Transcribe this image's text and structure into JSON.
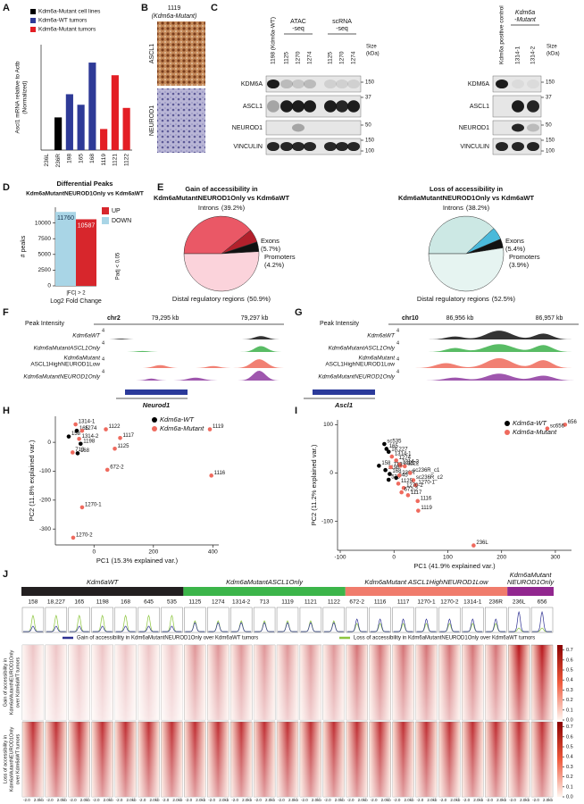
{
  "panel_labels": [
    "A",
    "B",
    "C",
    "D",
    "E",
    "F",
    "G",
    "H",
    "I",
    "J"
  ],
  "chart_data": [
    {
      "type": "bar",
      "ylabel": [
        "Ascl1 mRNA relative to Actb",
        "(Normalized)"
      ],
      "categories": [
        "236L",
        "236R",
        "198",
        "165",
        "168",
        "1119",
        "1121",
        "1122"
      ],
      "series": [
        {
          "name": "Kdm6a-Mutant cell lines",
          "color": "#000000",
          "values": [
            0,
            155,
            null,
            null,
            null,
            null,
            null,
            null
          ]
        },
        {
          "name": "Kdm6a-WT tumors",
          "color": "#2e3a97",
          "values": [
            null,
            null,
            265,
            215,
            415,
            null,
            null,
            null
          ]
        },
        {
          "name": "Kdm6a-Mutant tumors",
          "color": "#e31e24",
          "values": [
            null,
            null,
            null,
            null,
            null,
            100,
            355,
            200
          ]
        }
      ],
      "ylim": [
        0,
        500
      ]
    },
    {
      "type": "bar",
      "title": "Differential Peaks",
      "subtitle": "Kdm6aMutantNEUROD1Only vs Kdm6aWT",
      "ylabel": "# peaks",
      "xlabel": "Log2 Fold Change",
      "annotations": [
        "|FC| > 2",
        "Padj < 0.05"
      ],
      "series": [
        {
          "name": "UP",
          "color": "#d7262c",
          "values": [
            10587
          ]
        },
        {
          "name": "DOWN",
          "color": "#a9d5e6",
          "values": [
            11760
          ]
        }
      ],
      "ylim": [
        0,
        12500
      ],
      "yticks": [
        0,
        2500,
        5000,
        7500,
        10000
      ]
    },
    {
      "type": "pie",
      "title": [
        "Gain of accessibility in",
        "Kdm6aMutantNEUROD1Only vs Kdm6aWT"
      ],
      "categories": [
        "Introns",
        "Exons",
        "Promoters",
        "Distal regulatory regions"
      ],
      "values": [
        39.2,
        5.7,
        4.2,
        50.9
      ],
      "value_labels": [
        "(39.2%)",
        "(5.7%)",
        "(4.2%)",
        "(50.9%)"
      ],
      "colors": [
        "#ea5866",
        "#b3202c",
        "#111111",
        "#fbd3db"
      ]
    },
    {
      "type": "pie",
      "title": [
        "Loss of accessibility in",
        "Kdm6aMutantNEUROD1Only vs Kdm6aWT"
      ],
      "categories": [
        "Introns",
        "Exons",
        "Promoters",
        "Distal regulatory regions"
      ],
      "values": [
        38.2,
        5.4,
        3.9,
        52.5
      ],
      "value_labels": [
        "(38.2%)",
        "(5.4%)",
        "(3.9%)",
        "(52.5%)"
      ],
      "colors": [
        "#cce8e4",
        "#4ab9da",
        "#111111",
        "#e6f4f1"
      ]
    },
    {
      "type": "scatter",
      "xlabel": "PC1 (15.3% explained var.)",
      "ylabel": "PC2 (11.8% explained var.)",
      "xlim": [
        -130,
        420
      ],
      "xticks": [
        0,
        200,
        400
      ],
      "ylim": [
        -355,
        90
      ],
      "yticks": [
        0,
        -100,
        -200,
        -300
      ],
      "series": [
        {
          "name": "Kdm6a-WT",
          "color": "#000000",
          "labels": [
            "158",
            "165",
            "1198",
            "168"
          ],
          "x": [
            -85,
            -58,
            -45,
            -55
          ],
          "values": [
            20,
            40,
            -5,
            -38
          ]
        },
        {
          "name": "Kdm6a-Mutant",
          "color": "#ef6a5e",
          "labels": [
            "1314-1",
            "1274",
            "1314-2",
            "713",
            "1122",
            "1117",
            "1125",
            "672-2",
            "1119",
            "1116",
            "1270-1",
            "1270-2"
          ],
          "x": [
            -62,
            -40,
            -50,
            -72,
            40,
            88,
            70,
            45,
            390,
            395,
            -40,
            -70
          ],
          "values": [
            62,
            40,
            12,
            -35,
            45,
            15,
            -22,
            -95,
            45,
            -115,
            -225,
            -330
          ]
        }
      ]
    },
    {
      "type": "scatter",
      "xlabel": "PC1 (41.9% explained var.)",
      "ylabel": "PC2 (11.2% explained var.)",
      "xlim": [
        -105,
        330
      ],
      "xticks": [
        -100,
        0,
        100,
        200,
        300
      ],
      "ylim": [
        -160,
        110
      ],
      "yticks": [
        -100,
        0,
        100
      ],
      "series": [
        {
          "name": "Kdm6a-WT",
          "color": "#000000",
          "labels": [
            "sc535",
            "165",
            "18,227",
            "158",
            "1198",
            "168",
            "645",
            "535"
          ],
          "x": [
            -18,
            -14,
            -10,
            -28,
            -16,
            -8,
            4,
            -10
          ],
          "values": [
            60,
            50,
            44,
            15,
            6,
            -2,
            -10,
            -14
          ]
        },
        {
          "name": "Kdm6a-Mutant",
          "color": "#ef6a5e",
          "labels": [
            "1314-1",
            "1274",
            "1314-2",
            "1122",
            "1121",
            "713",
            "236R",
            "sc236R_c1",
            "sc236R_c2",
            "1270-1",
            "1125",
            "1270-2",
            "672-2",
            "1117",
            "1116",
            "1119",
            "236L",
            "656",
            "sc656"
          ],
          "x": [
            -4,
            4,
            10,
            20,
            12,
            -6,
            10,
            30,
            36,
            40,
            8,
            18,
            14,
            26,
            44,
            45,
            148,
            318,
            285
          ],
          "values": [
            34,
            26,
            18,
            14,
            15,
            12,
            -5,
            0,
            -15,
            -25,
            -22,
            -31,
            -40,
            -46,
            -58,
            -78,
            -150,
            100,
            92
          ]
        }
      ]
    }
  ],
  "panel_b": {
    "title": "1119",
    "subtitle": "(Kdm6a-Mutant)",
    "rows": [
      "ASCL1",
      "NEUROD1"
    ]
  },
  "panel_c": {
    "left": {
      "columns": [
        "1198 (Kdm6a-WT)",
        "1125",
        "1270",
        "1274",
        "1125",
        "1270",
        "1274"
      ],
      "groups": [
        [
          "ATAC",
          "-seq"
        ],
        [
          "scRNA",
          "-seq"
        ]
      ],
      "size_label": [
        "Size",
        "(kDa)"
      ],
      "rows": [
        "KDM6A",
        "ASCL1",
        "NEUROD1",
        "VINCULIN"
      ],
      "sizes": [
        "150",
        "37",
        "50",
        "150",
        "100"
      ]
    },
    "right": {
      "columns": [
        "Kdm6a positive control",
        "1314-1",
        "1314-2"
      ],
      "group": [
        "Kdm6a",
        "-Mutant"
      ],
      "size_label": [
        "Size",
        "(kDa)"
      ],
      "rows": [
        "KDM6A",
        "ASCL1",
        "NEUROD1",
        "VINCULIN"
      ],
      "sizes": [
        "150",
        "37",
        "50",
        "150",
        "100"
      ]
    }
  },
  "panel_f": {
    "ylabel": "Peak Intensity",
    "chrom": "chr2",
    "positions": [
      "79,295 kb",
      "79,297 kb"
    ],
    "scale": "4",
    "tracks": [
      [
        "Kdm6aWT"
      ],
      [
        "Kdm6aMutantASCL1Only"
      ],
      [
        "Kdm6aMutant",
        "ASCL1HighNEUROD1Low"
      ],
      [
        "Kdm6aMutantNEUROD1Only"
      ]
    ],
    "gene": "Neurod1"
  },
  "panel_g": {
    "ylabel": "Peak Intensity",
    "chrom": "chr10",
    "positions": [
      "86,956 kb",
      "86,957 kb"
    ],
    "scale": "4",
    "tracks": [
      [
        "Kdm6aWT"
      ],
      [
        "Kdm6aMutantASCL1Only"
      ],
      [
        "Kdm6aMutant",
        "ASCL1HighNEUROD1Low"
      ],
      [
        "Kdm6aMutantNEUROD1Only"
      ]
    ],
    "gene": "Ascl1"
  },
  "panel_j": {
    "groups": [
      {
        "name": [
          "Kdm6aWT"
        ],
        "color": "#231f20",
        "samples": [
          "158",
          "18,227",
          "165",
          "1198",
          "168",
          "645",
          "535"
        ]
      },
      {
        "name": [
          "Kdm6aMutantASCL1Only"
        ],
        "color": "#3cb54a",
        "samples": [
          "1125",
          "1274",
          "1314-2",
          "713",
          "1119",
          "1121",
          "1122"
        ]
      },
      {
        "name": [
          "Kdm6aMutant ASCL1HighNEUROD1Low"
        ],
        "color": "#f07c6c",
        "samples": [
          "672-2",
          "1116",
          "1117",
          "1270-1",
          "1270-2",
          "1314-1",
          "236R"
        ]
      },
      {
        "name": [
          "Kdm6aMutant",
          "NEUROD1Only"
        ],
        "color": "#92278f",
        "samples": [
          "236L",
          "656"
        ]
      }
    ],
    "legend": [
      {
        "name": "Gain of accessibility in Kdm6aMutantNEUROD1Only over Kdm6aWT tumors",
        "color": "#2e3192"
      },
      {
        "name": "Loss of accessibility in Kdm6aMutantNEUROD1Only over Kdm6aWT tumors",
        "color": "#8dc63f"
      }
    ],
    "row_labels": [
      [
        "Gain of accessibility in",
        "Kdm6aMutantNEUROD1Only",
        "over Kdm6aWT tumors"
      ],
      [
        "Loss of accessibility in",
        "Kdm6aMutantNEUROD1Only",
        "over Kdm6aWT tumors"
      ]
    ],
    "xtick_labels": [
      "-2.0",
      "2.0kb"
    ],
    "clim": [
      0,
      0.75
    ],
    "colorbar_ticks": [
      {
        "value": 0,
        "label": "0.0"
      },
      {
        "value": 0.1,
        "label": "0.1"
      },
      {
        "value": 0.2,
        "label": "0.2"
      },
      {
        "value": 0.3,
        "label": "0.3"
      },
      {
        "value": 0.4,
        "label": "0.4"
      },
      {
        "value": 0.5,
        "label": "0.5"
      },
      {
        "value": 0.6,
        "label": "0.6"
      },
      {
        "value": 0.7,
        "label": "0.7"
      }
    ]
  }
}
